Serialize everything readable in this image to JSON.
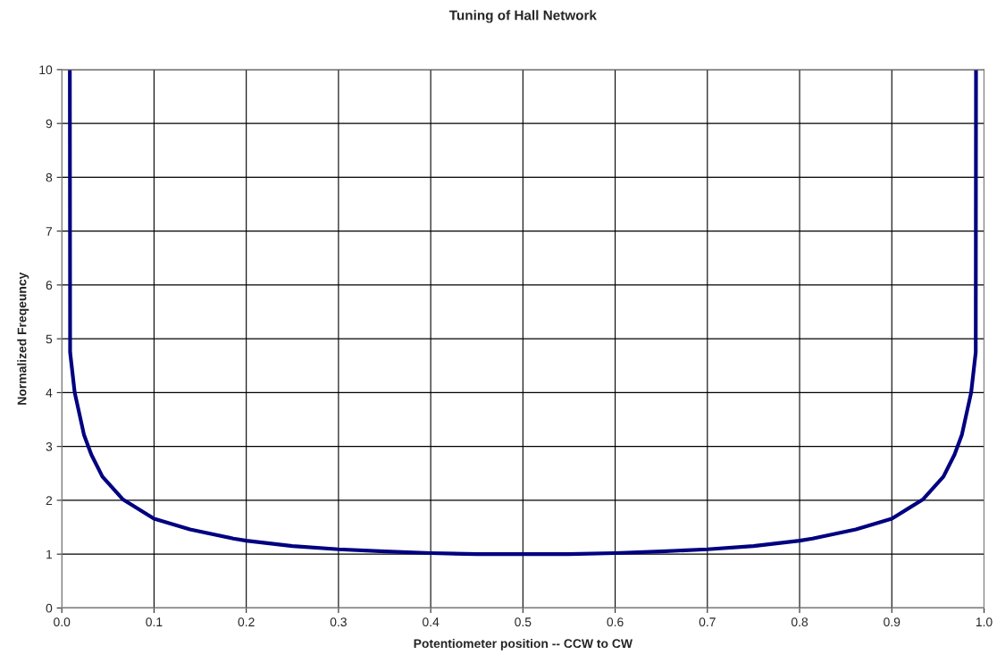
{
  "chart_data": {
    "type": "line",
    "title": "Tuning of Hall Network",
    "xlabel": "Potentiometer position -- CCW to CW",
    "ylabel": "Normalized Freqeuncy",
    "x": [
      0.0087,
      0.009,
      0.014,
      0.024,
      0.032,
      0.044,
      0.066,
      0.1,
      0.139,
      0.186,
      0.2,
      0.25,
      0.3,
      0.35,
      0.4,
      0.45,
      0.5,
      0.55,
      0.6,
      0.65,
      0.7,
      0.75,
      0.8,
      0.814,
      0.861,
      0.9,
      0.934,
      0.956,
      0.968,
      0.976,
      0.986,
      0.991,
      0.9913
    ],
    "series": [
      {
        "color": "#000080",
        "values": [
          10,
          4.75,
          4.0,
          3.22,
          2.85,
          2.44,
          2.02,
          1.66,
          1.46,
          1.29,
          1.25,
          1.15,
          1.09,
          1.05,
          1.02,
          1.0,
          1.0,
          1.0,
          1.02,
          1.05,
          1.09,
          1.15,
          1.25,
          1.29,
          1.46,
          1.66,
          2.02,
          2.44,
          2.85,
          3.22,
          4.0,
          4.75,
          10
        ]
      }
    ],
    "xlim": [
      0,
      1
    ],
    "xticks": [
      {
        "value": 0,
        "label": "0.0"
      },
      0.1,
      0.2,
      0.3,
      0.4,
      0.5,
      0.6,
      0.7,
      0.8,
      0.9,
      {
        "value": 1,
        "label": "1.0"
      }
    ],
    "ylim": [
      0,
      10
    ],
    "yticks": [
      0,
      1,
      2,
      3,
      4,
      5,
      6,
      7,
      8,
      9,
      10
    ],
    "grid": true,
    "line_style": "solid",
    "marker": "none"
  }
}
